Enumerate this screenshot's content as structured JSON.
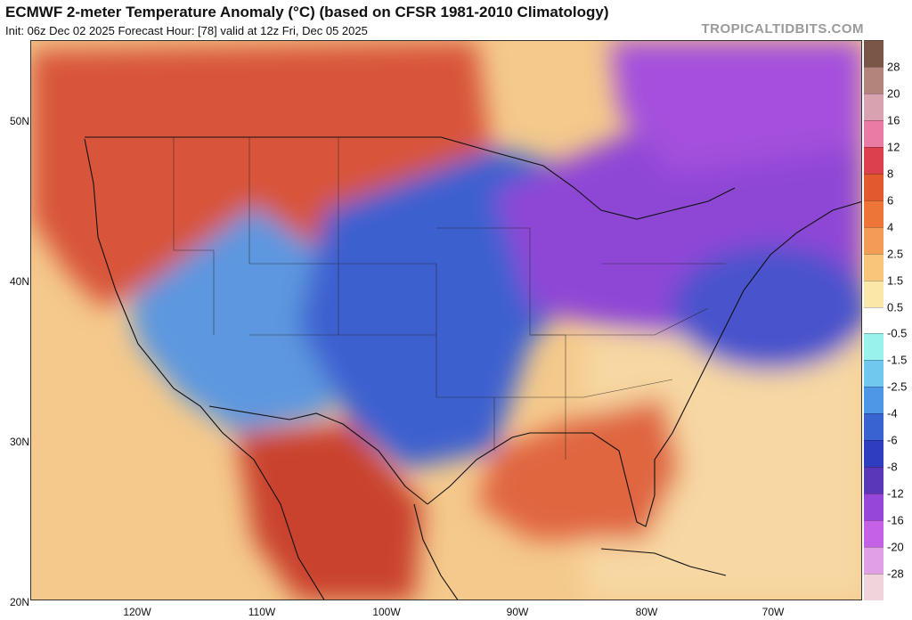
{
  "header": {
    "title": "ECMWF 2-meter Temperature Anomaly (°C) (based on CFSR 1981-2010 Climatology)",
    "subtitle": "Init: 06z Dec 02 2025   Forecast Hour: [78]   valid at 12z Fri, Dec 05 2025",
    "brand": "TROPICALTIDBITS.COM"
  },
  "axes": {
    "lat_labels": [
      "50N",
      "40N",
      "30N",
      "20N"
    ],
    "lon_labels": [
      "120W",
      "110W",
      "100W",
      "90W",
      "80W",
      "70W"
    ]
  },
  "colorbar": {
    "labels": [
      "28",
      "20",
      "16",
      "12",
      "8",
      "6",
      "4",
      "2.5",
      "1.5",
      "0.5",
      "-0.5",
      "-1.5",
      "-2.5",
      "-4",
      "-6",
      "-8",
      "-12",
      "-16",
      "-20",
      "-28"
    ],
    "colors": [
      "#7a5646",
      "#b3847c",
      "#d9a2b1",
      "#ea7ba4",
      "#dc3f4e",
      "#e2582f",
      "#ee7538",
      "#f39c55",
      "#f8c57b",
      "#fbe7a8",
      "#ffffff",
      "#9af2ec",
      "#71c8ef",
      "#4e96e6",
      "#3a63d2",
      "#2f3dc0",
      "#5a36b9",
      "#9646d8",
      "#c461e7",
      "#e09fe6",
      "#f1d3dc"
    ]
  },
  "regions": {
    "northwest_plains": "#d8553a",
    "rockies_southwest": "#5d97df",
    "central_plains": "#3d60cf",
    "great_lakes_northeast": "#8e47d5",
    "southeast_gulf": "#e06640",
    "mexico": "#c9432e",
    "pacific_ocean": "#f4c98b",
    "atlantic_ocean": "#f7d7a2",
    "atlantic_cold_pool": "#4a53cc",
    "canada_east": "#a450dd"
  }
}
